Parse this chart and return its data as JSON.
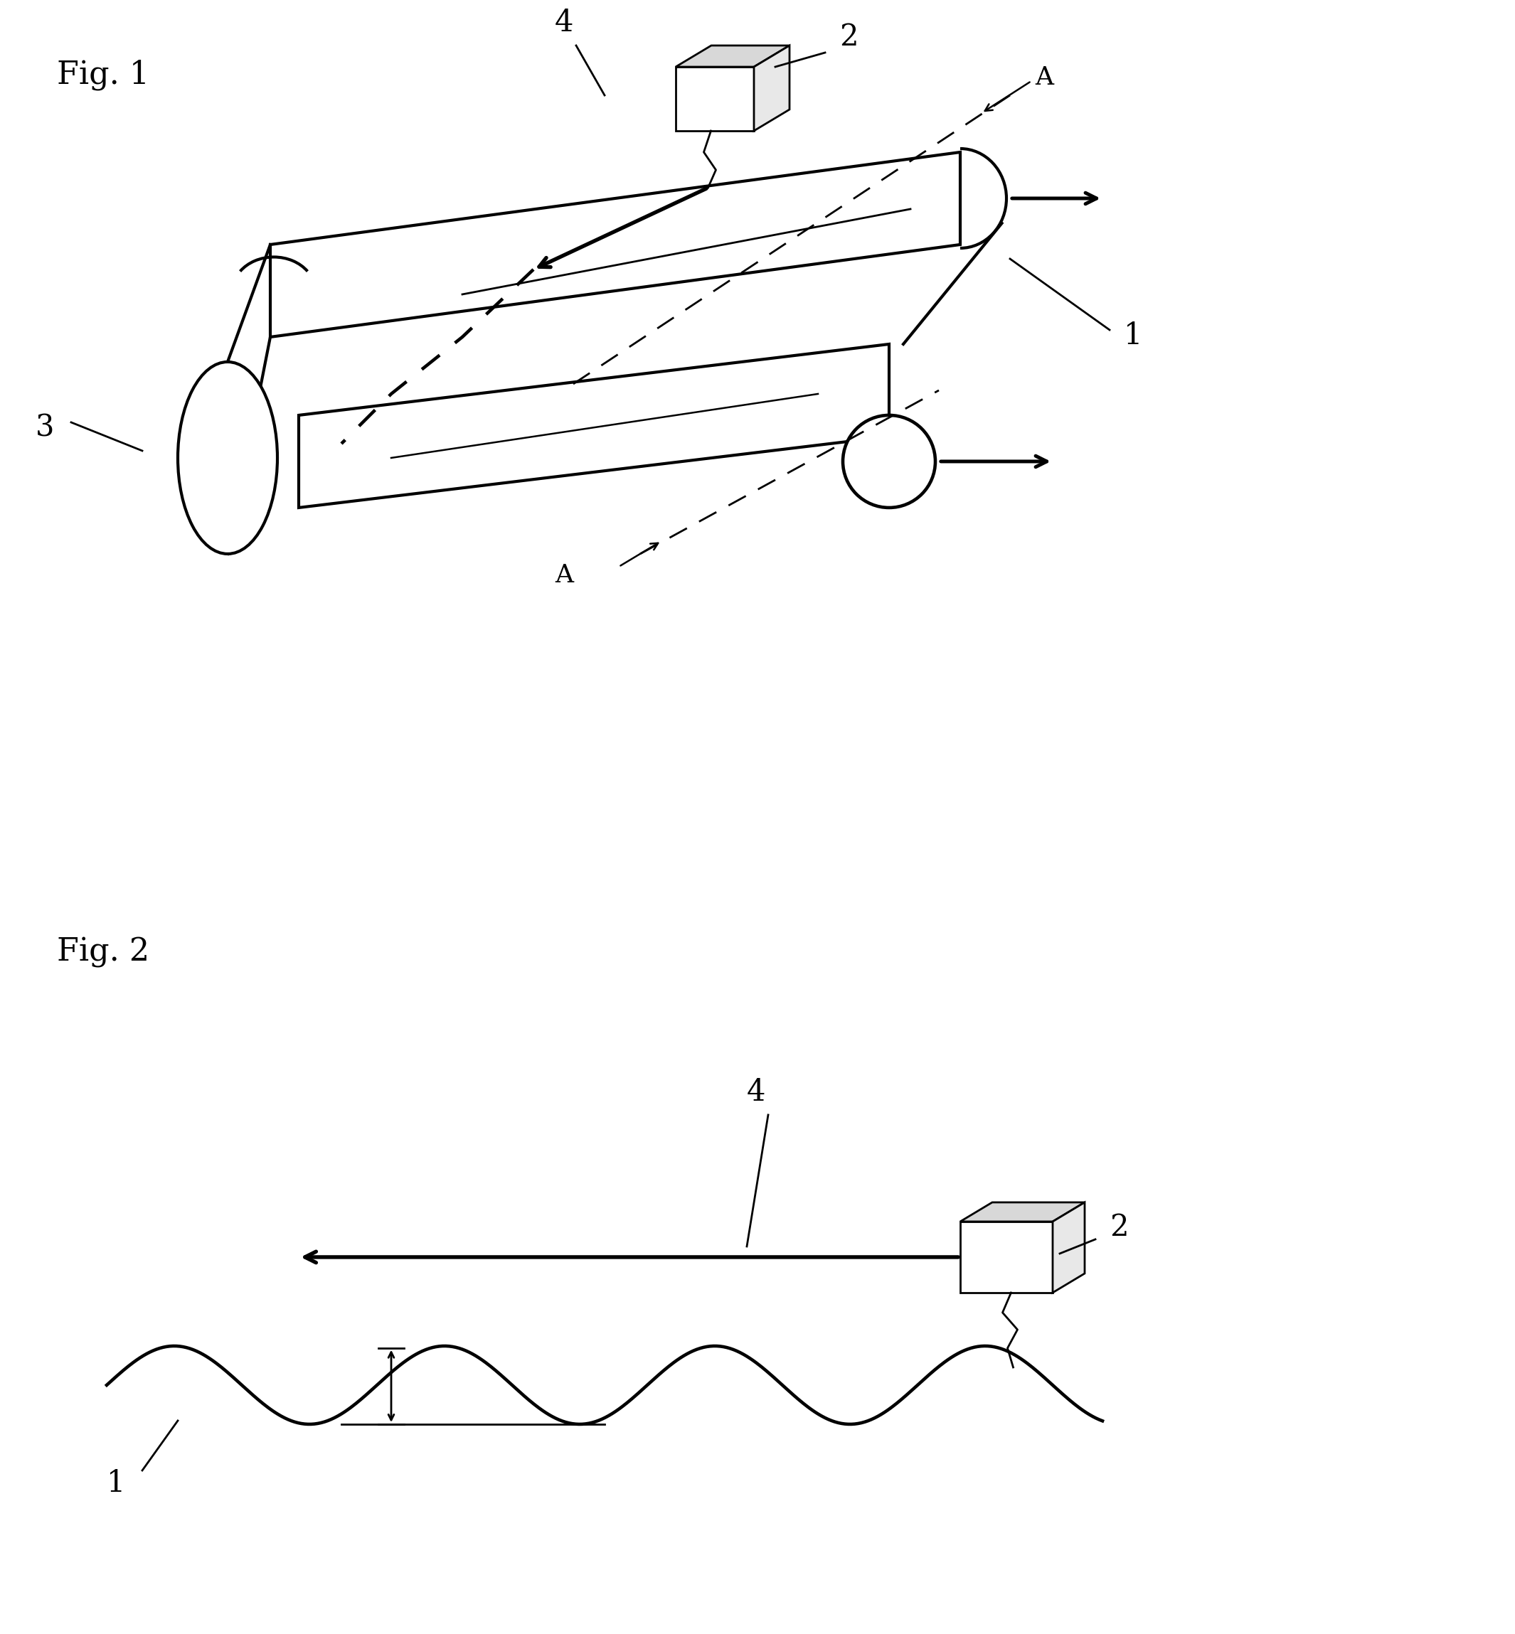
{
  "fig_label1": "Fig. 1",
  "fig_label2": "Fig. 2",
  "label1": "1",
  "label2": "2",
  "label3": "3",
  "label4": "4",
  "labelA": "A",
  "bg_color": "#ffffff",
  "line_color": "#000000",
  "lw_main": 3.0,
  "lw_thin": 2.0,
  "lw_thick": 4.0
}
